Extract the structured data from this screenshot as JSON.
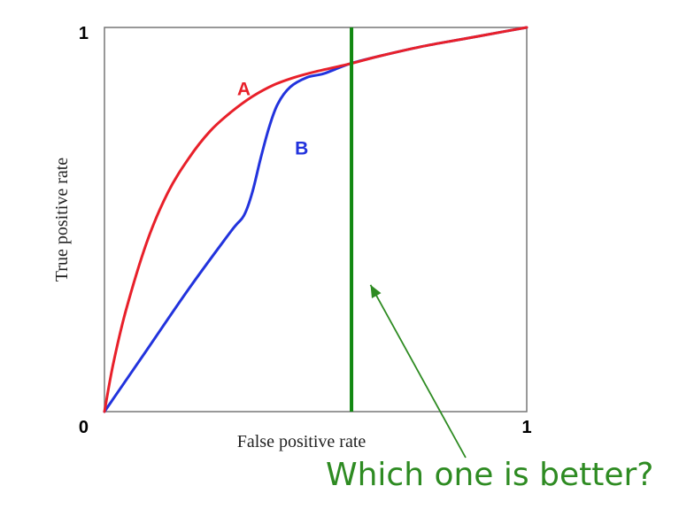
{
  "chart_data": {
    "type": "line",
    "xlabel": "False positive rate",
    "ylabel": "True positive rate",
    "xlim": [
      0,
      1
    ],
    "ylim": [
      0,
      1
    ],
    "x_ticks": [
      "0",
      "1"
    ],
    "y_ticks": [
      "0",
      "1"
    ],
    "grid": false,
    "series": [
      {
        "name": "A",
        "color": "#e8202a",
        "points": [
          [
            0,
            0
          ],
          [
            0.02,
            0.12
          ],
          [
            0.05,
            0.26
          ],
          [
            0.1,
            0.44
          ],
          [
            0.15,
            0.57
          ],
          [
            0.2,
            0.66
          ],
          [
            0.25,
            0.73
          ],
          [
            0.3,
            0.78
          ],
          [
            0.35,
            0.82
          ],
          [
            0.4,
            0.85
          ],
          [
            0.45,
            0.87
          ],
          [
            0.5,
            0.885
          ],
          [
            0.58,
            0.905
          ],
          [
            0.65,
            0.925
          ],
          [
            0.75,
            0.95
          ],
          [
            0.85,
            0.97
          ],
          [
            0.95,
            0.99
          ],
          [
            1,
            1
          ]
        ]
      },
      {
        "name": "B",
        "color": "#2233dd",
        "points": [
          [
            0,
            0
          ],
          [
            0.1,
            0.16
          ],
          [
            0.2,
            0.32
          ],
          [
            0.3,
            0.47
          ],
          [
            0.33,
            0.51
          ],
          [
            0.35,
            0.57
          ],
          [
            0.37,
            0.66
          ],
          [
            0.39,
            0.74
          ],
          [
            0.41,
            0.8
          ],
          [
            0.44,
            0.845
          ],
          [
            0.48,
            0.87
          ],
          [
            0.52,
            0.88
          ],
          [
            0.58,
            0.905
          ],
          [
            0.65,
            0.925
          ],
          [
            0.75,
            0.95
          ],
          [
            0.85,
            0.97
          ],
          [
            0.95,
            0.99
          ],
          [
            1,
            1
          ]
        ]
      }
    ],
    "vertical_line": {
      "x": 0.585,
      "color": "#118811"
    },
    "annotation": {
      "text": "Which one is better?",
      "color": "#2e8b22",
      "arrow_target": [
        0.63,
        0.33
      ]
    }
  }
}
